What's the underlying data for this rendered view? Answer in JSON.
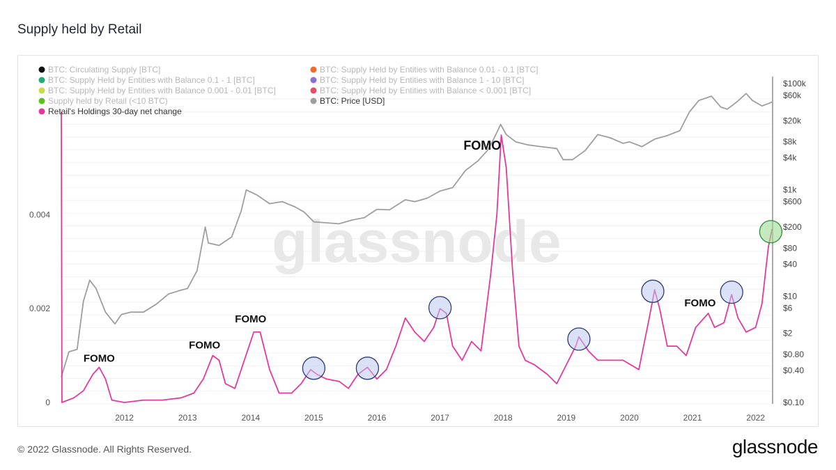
{
  "page": {
    "title": "Supply held by Retail",
    "footer_copyright": "© 2022 Glassnode. All Rights Reserved.",
    "footer_logo": "glassnode",
    "watermark": "glassnode"
  },
  "chart_data": {
    "type": "line",
    "title": "Supply held by Retail",
    "legend_position": "top-left",
    "legend": [
      {
        "label": "BTC: Circulating Supply [BTC]",
        "color": "#111111",
        "active": false
      },
      {
        "label": "BTC: Supply Held by Entities with Balance 0.01 - 0.1 [BTC]",
        "color": "#f26b2d",
        "active": false
      },
      {
        "label": "BTC: Supply Held by Entities with Balance 0.1 - 1 [BTC]",
        "color": "#1fae7a",
        "active": false
      },
      {
        "label": "BTC: Supply Held by Entities with Balance 1 - 10 [BTC]",
        "color": "#8a6fd6",
        "active": false
      },
      {
        "label": "BTC: Supply Held by Entities with Balance 0.001 - 0.01 [BTC]",
        "color": "#c8dc4a",
        "active": false
      },
      {
        "label": "BTC: Supply Held by Entities with Balance < 0.001 [BTC]",
        "color": "#e0506a",
        "active": false
      },
      {
        "label": "Supply held by Retail (<10 BTC)",
        "color": "#5cc01d",
        "active": false
      },
      {
        "label": "BTC: Price [USD]",
        "color": "#9e9e9e",
        "active": true
      },
      {
        "label": "Retail's Holdings 30-day net change",
        "color": "#e6389a",
        "active": true
      }
    ],
    "x_axis": {
      "ticks": [
        "2012",
        "2013",
        "2014",
        "2015",
        "2016",
        "2017",
        "2018",
        "2019",
        "2020",
        "2021",
        "2022"
      ],
      "range": [
        2011.0,
        2022.28
      ]
    },
    "y_left": {
      "ticks": [
        "0",
        "0.002",
        "0.004"
      ],
      "range": [
        0,
        0.0065
      ]
    },
    "y_right": {
      "scale": "log",
      "ticks": [
        "$100k",
        "$60k",
        "$20k",
        "$8k",
        "$4k",
        "$1k",
        "$600",
        "$200",
        "$80",
        "$40",
        "$10",
        "$6",
        "$2",
        "$0.80",
        "$0.40",
        "$0.10"
      ],
      "range": [
        0.1,
        100000
      ]
    },
    "grid": "horizontal",
    "series": [
      {
        "name": "BTC: Price [USD]",
        "color": "#9e9e9e",
        "axis": "right",
        "points": [
          [
            2011.0,
            0.3
          ],
          [
            2011.12,
            0.9
          ],
          [
            2011.25,
            1
          ],
          [
            2011.35,
            8
          ],
          [
            2011.45,
            20
          ],
          [
            2011.55,
            14
          ],
          [
            2011.7,
            5
          ],
          [
            2011.85,
            3
          ],
          [
            2011.95,
            4.5
          ],
          [
            2012.1,
            5
          ],
          [
            2012.3,
            5
          ],
          [
            2012.5,
            7
          ],
          [
            2012.7,
            11
          ],
          [
            2012.9,
            13
          ],
          [
            2013.0,
            14
          ],
          [
            2013.15,
            30
          ],
          [
            2013.28,
            200
          ],
          [
            2013.33,
            100
          ],
          [
            2013.5,
            90
          ],
          [
            2013.7,
            130
          ],
          [
            2013.85,
            400
          ],
          [
            2013.93,
            1000
          ],
          [
            2014.1,
            800
          ],
          [
            2014.3,
            550
          ],
          [
            2014.5,
            600
          ],
          [
            2014.7,
            480
          ],
          [
            2014.85,
            380
          ],
          [
            2015.0,
            250
          ],
          [
            2015.2,
            240
          ],
          [
            2015.4,
            230
          ],
          [
            2015.6,
            270
          ],
          [
            2015.8,
            300
          ],
          [
            2016.0,
            430
          ],
          [
            2016.2,
            420
          ],
          [
            2016.45,
            650
          ],
          [
            2016.6,
            600
          ],
          [
            2016.8,
            700
          ],
          [
            2017.0,
            950
          ],
          [
            2017.2,
            1100
          ],
          [
            2017.4,
            2300
          ],
          [
            2017.6,
            3500
          ],
          [
            2017.75,
            5500
          ],
          [
            2017.85,
            9000
          ],
          [
            2017.96,
            17000
          ],
          [
            2018.05,
            11000
          ],
          [
            2018.2,
            8000
          ],
          [
            2018.4,
            7000
          ],
          [
            2018.6,
            6500
          ],
          [
            2018.85,
            6000
          ],
          [
            2018.95,
            3700
          ],
          [
            2019.1,
            3700
          ],
          [
            2019.3,
            5500
          ],
          [
            2019.5,
            11000
          ],
          [
            2019.7,
            9500
          ],
          [
            2019.9,
            7500
          ],
          [
            2020.0,
            8000
          ],
          [
            2020.2,
            6500
          ],
          [
            2020.4,
            9000
          ],
          [
            2020.6,
            10500
          ],
          [
            2020.8,
            13000
          ],
          [
            2020.95,
            29000
          ],
          [
            2021.1,
            48000
          ],
          [
            2021.3,
            58000
          ],
          [
            2021.45,
            36000
          ],
          [
            2021.55,
            33000
          ],
          [
            2021.7,
            45000
          ],
          [
            2021.85,
            65000
          ],
          [
            2021.95,
            48000
          ],
          [
            2022.1,
            38000
          ],
          [
            2022.2,
            42000
          ],
          [
            2022.26,
            45000
          ]
        ]
      },
      {
        "name": "Retail's Holdings 30-day net change",
        "color": "#e6389a",
        "axis": "left",
        "points": [
          [
            2011.0,
            0.0062
          ],
          [
            2011.01,
            0.0
          ],
          [
            2011.2,
            0.0001
          ],
          [
            2011.35,
            0.00025
          ],
          [
            2011.5,
            0.0006
          ],
          [
            2011.6,
            0.00075
          ],
          [
            2011.7,
            0.0005
          ],
          [
            2011.8,
            5e-05
          ],
          [
            2012.0,
            0.0
          ],
          [
            2012.3,
            5e-05
          ],
          [
            2012.6,
            5e-05
          ],
          [
            2012.9,
            0.0001
          ],
          [
            2013.1,
            0.0002
          ],
          [
            2013.25,
            0.0005
          ],
          [
            2013.4,
            0.001
          ],
          [
            2013.5,
            0.0009
          ],
          [
            2013.6,
            0.0004
          ],
          [
            2013.75,
            0.0003
          ],
          [
            2013.9,
            0.0009
          ],
          [
            2014.05,
            0.0015
          ],
          [
            2014.15,
            0.0015
          ],
          [
            2014.3,
            0.0007
          ],
          [
            2014.45,
            0.0002
          ],
          [
            2014.65,
            0.0002
          ],
          [
            2014.8,
            0.0004
          ],
          [
            2014.95,
            0.0007
          ],
          [
            2015.05,
            0.0006
          ],
          [
            2015.2,
            0.0005
          ],
          [
            2015.4,
            0.00045
          ],
          [
            2015.55,
            0.0003
          ],
          [
            2015.7,
            0.0006
          ],
          [
            2015.85,
            0.00075
          ],
          [
            2016.0,
            0.0005
          ],
          [
            2016.15,
            0.0007
          ],
          [
            2016.3,
            0.0012
          ],
          [
            2016.45,
            0.0018
          ],
          [
            2016.6,
            0.0015
          ],
          [
            2016.75,
            0.0013
          ],
          [
            2016.9,
            0.0016
          ],
          [
            2017.0,
            0.002
          ],
          [
            2017.1,
            0.0019
          ],
          [
            2017.2,
            0.0012
          ],
          [
            2017.35,
            0.0009
          ],
          [
            2017.5,
            0.0013
          ],
          [
            2017.65,
            0.0011
          ],
          [
            2017.8,
            0.0027
          ],
          [
            2017.9,
            0.004
          ],
          [
            2017.97,
            0.0057
          ],
          [
            2018.05,
            0.005
          ],
          [
            2018.15,
            0.0028
          ],
          [
            2018.25,
            0.0012
          ],
          [
            2018.35,
            0.0009
          ],
          [
            2018.5,
            0.0008
          ],
          [
            2018.7,
            0.0006
          ],
          [
            2018.85,
            0.0004
          ],
          [
            2019.0,
            0.0008
          ],
          [
            2019.15,
            0.0012
          ],
          [
            2019.2,
            0.0014
          ],
          [
            2019.35,
            0.0011
          ],
          [
            2019.5,
            0.0009
          ],
          [
            2019.7,
            0.0009
          ],
          [
            2019.9,
            0.0009
          ],
          [
            2020.15,
            0.0007
          ],
          [
            2020.3,
            0.0017
          ],
          [
            2020.4,
            0.0024
          ],
          [
            2020.48,
            0.002
          ],
          [
            2020.6,
            0.0012
          ],
          [
            2020.75,
            0.0012
          ],
          [
            2020.9,
            0.001
          ],
          [
            2021.05,
            0.0016
          ],
          [
            2021.25,
            0.0019
          ],
          [
            2021.35,
            0.0016
          ],
          [
            2021.5,
            0.0017
          ],
          [
            2021.62,
            0.0023
          ],
          [
            2021.72,
            0.0018
          ],
          [
            2021.85,
            0.0015
          ],
          [
            2022.0,
            0.0016
          ],
          [
            2022.1,
            0.0021
          ],
          [
            2022.2,
            0.0033
          ],
          [
            2022.26,
            0.0037
          ]
        ]
      }
    ],
    "annotations": [
      {
        "text": "FOMO",
        "x": 2011.6,
        "y": 0.00087,
        "size": 15
      },
      {
        "text": "FOMO",
        "x": 2013.27,
        "y": 0.00115,
        "size": 15
      },
      {
        "text": "FOMO",
        "x": 2014.0,
        "y": 0.00171,
        "size": 15
      },
      {
        "text": "FOMO",
        "x": 2017.67,
        "y": 0.00539,
        "size": 18
      },
      {
        "text": "FOMO",
        "x": 2021.12,
        "y": 0.00205,
        "size": 15
      }
    ],
    "highlights": [
      {
        "x": 2015.0,
        "y": 0.00073,
        "color": "blue"
      },
      {
        "x": 2015.85,
        "y": 0.00073,
        "color": "blue"
      },
      {
        "x": 2017.0,
        "y": 0.00202,
        "color": "blue"
      },
      {
        "x": 2019.2,
        "y": 0.00135,
        "color": "blue"
      },
      {
        "x": 2020.37,
        "y": 0.00237,
        "color": "blue"
      },
      {
        "x": 2021.62,
        "y": 0.00235,
        "color": "blue"
      },
      {
        "x": 2022.24,
        "y": 0.00364,
        "color": "green"
      }
    ]
  }
}
